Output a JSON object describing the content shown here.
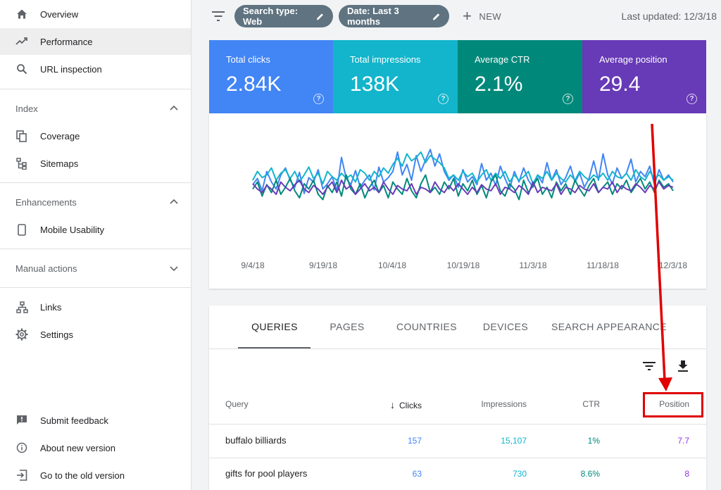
{
  "sidebar": {
    "top_items": [
      {
        "label": "Overview",
        "icon": "home-icon"
      },
      {
        "label": "Performance",
        "icon": "trending-up-icon"
      },
      {
        "label": "URL inspection",
        "icon": "search-icon"
      }
    ],
    "sections": [
      {
        "title": "Index",
        "items": [
          {
            "label": "Coverage",
            "icon": "coverage-icon"
          },
          {
            "label": "Sitemaps",
            "icon": "sitemap-icon"
          }
        ]
      },
      {
        "title": "Enhancements",
        "items": [
          {
            "label": "Mobile Usability",
            "icon": "phone-icon"
          }
        ]
      },
      {
        "title": "Manual actions",
        "items": []
      }
    ],
    "misc_items": [
      {
        "label": "Links",
        "icon": "links-icon"
      },
      {
        "label": "Settings",
        "icon": "gear-icon"
      }
    ],
    "bottom_items": [
      {
        "label": "Submit feedback",
        "icon": "feedback-icon"
      },
      {
        "label": "About new version",
        "icon": "info-icon"
      },
      {
        "label": "Go to the old version",
        "icon": "exit-icon"
      }
    ]
  },
  "topbar": {
    "chips": [
      {
        "label": "Search type: Web"
      },
      {
        "label": "Date: Last 3 months"
      }
    ],
    "new_label": "NEW",
    "last_updated": "Last updated: 12/3/18"
  },
  "metrics": [
    {
      "label": "Total clicks",
      "value": "2.84K",
      "color": "#4285f4"
    },
    {
      "label": "Total impressions",
      "value": "138K",
      "color": "#12b5cb"
    },
    {
      "label": "Average CTR",
      "value": "2.1%",
      "color": "#00897b"
    },
    {
      "label": "Average position",
      "value": "29.4",
      "color": "#673ab7"
    }
  ],
  "chart_data": {
    "type": "line",
    "x_tick_labels": [
      "9/4/18",
      "9/19/18",
      "10/4/18",
      "10/19/18",
      "11/3/18",
      "11/18/18",
      "12/3/18"
    ],
    "grid": false,
    "legend": "none",
    "series": [
      {
        "color": "#4285f4",
        "values": [
          0.55,
          0.62,
          0.48,
          0.7,
          0.58,
          0.5,
          0.66,
          0.74,
          0.6,
          0.52,
          0.69,
          0.45,
          0.63,
          0.58,
          0.72,
          0.5,
          0.56,
          0.64,
          0.48,
          0.86,
          0.62,
          0.55,
          0.71,
          0.52,
          0.6,
          0.66,
          0.49,
          0.75,
          0.58,
          0.63,
          0.7,
          0.92,
          0.66,
          0.78,
          0.6,
          0.88,
          0.7,
          0.83,
          0.95,
          0.76,
          0.9,
          0.7,
          0.6,
          0.66,
          0.52,
          0.72,
          0.58,
          0.64,
          0.55,
          0.79,
          0.6,
          0.68,
          0.54,
          0.76,
          0.62,
          0.5,
          0.7,
          0.58,
          0.74,
          0.6,
          0.52,
          0.66,
          0.57,
          0.8,
          0.6,
          0.72,
          0.55,
          0.63,
          0.76,
          0.58,
          0.68,
          0.52,
          0.62,
          0.82,
          0.6,
          0.9,
          0.66,
          0.56,
          0.74,
          0.62,
          0.68,
          0.84,
          0.58,
          0.7,
          0.64,
          0.76,
          0.55,
          0.72,
          0.6,
          0.66,
          0.58
        ]
      },
      {
        "color": "#12b5cb",
        "values": [
          0.6,
          0.7,
          0.63,
          0.66,
          0.74,
          0.6,
          0.68,
          0.72,
          0.62,
          0.7,
          0.58,
          0.66,
          0.75,
          0.62,
          0.68,
          0.56,
          0.7,
          0.64,
          0.6,
          0.68,
          0.62,
          0.66,
          0.58,
          0.72,
          0.68,
          0.6,
          0.7,
          0.64,
          0.74,
          0.68,
          0.78,
          0.85,
          0.76,
          0.9,
          0.82,
          0.86,
          0.92,
          0.8,
          0.88,
          0.84,
          0.8,
          0.74,
          0.62,
          0.66,
          0.6,
          0.7,
          0.64,
          0.68,
          0.58,
          0.66,
          0.72,
          0.6,
          0.68,
          0.62,
          0.7,
          0.58,
          0.66,
          0.6,
          0.64,
          0.7,
          0.56,
          0.66,
          0.62,
          0.7,
          0.6,
          0.68,
          0.62,
          0.58,
          0.66,
          0.6,
          0.7,
          0.64,
          0.6,
          0.66,
          0.62,
          0.68,
          0.6,
          0.7,
          0.64,
          0.62,
          0.68,
          0.6,
          0.72,
          0.64,
          0.6,
          0.7,
          0.62,
          0.66,
          0.6,
          0.64,
          0.6
        ]
      },
      {
        "color": "#00897b",
        "values": [
          0.5,
          0.58,
          0.42,
          0.55,
          0.46,
          0.6,
          0.44,
          0.52,
          0.62,
          0.48,
          0.4,
          0.56,
          0.5,
          0.6,
          0.44,
          0.38,
          0.54,
          0.46,
          0.58,
          0.42,
          0.66,
          0.5,
          0.44,
          0.56,
          0.4,
          0.52,
          0.6,
          0.46,
          0.54,
          0.4,
          0.58,
          0.5,
          0.44,
          0.62,
          0.48,
          0.4,
          0.56,
          0.66,
          0.46,
          0.52,
          0.44,
          0.58,
          0.5,
          0.62,
          0.42,
          0.56,
          0.48,
          0.6,
          0.44,
          0.54,
          0.4,
          0.58,
          0.66,
          0.48,
          0.42,
          0.56,
          0.5,
          0.38,
          0.6,
          0.46,
          0.54,
          0.62,
          0.44,
          0.52,
          0.4,
          0.58,
          0.48,
          0.56,
          0.44,
          0.6,
          0.5,
          0.42,
          0.54,
          0.62,
          0.46,
          0.52,
          0.58,
          0.44,
          0.56,
          0.5,
          0.6,
          0.46,
          0.54,
          0.62,
          0.5,
          0.58,
          0.46,
          0.6,
          0.52,
          0.56,
          0.48
        ]
      },
      {
        "color": "#673ab7",
        "values": [
          0.56,
          0.5,
          0.46,
          0.54,
          0.5,
          0.44,
          0.58,
          0.52,
          0.48,
          0.55,
          0.6,
          0.5,
          0.46,
          0.54,
          0.5,
          0.44,
          0.52,
          0.58,
          0.46,
          0.6,
          0.5,
          0.54,
          0.44,
          0.5,
          0.56,
          0.48,
          0.52,
          0.46,
          0.58,
          0.5,
          0.44,
          0.54,
          0.5,
          0.48,
          0.56,
          0.44,
          0.52,
          0.5,
          0.46,
          0.58,
          0.5,
          0.46,
          0.54,
          0.48,
          0.56,
          0.5,
          0.44,
          0.52,
          0.46,
          0.55,
          0.5,
          0.48,
          0.56,
          0.44,
          0.52,
          0.5,
          0.46,
          0.54,
          0.5,
          0.44,
          0.58,
          0.46,
          0.52,
          0.5,
          0.48,
          0.56,
          0.44,
          0.52,
          0.5,
          0.46,
          0.54,
          0.5,
          0.48,
          0.56,
          0.46,
          0.52,
          0.5,
          0.58,
          0.46,
          0.54,
          0.5,
          0.48,
          0.56,
          0.52,
          0.46,
          0.54,
          0.5,
          0.58,
          0.5,
          0.54,
          0.52
        ]
      }
    ]
  },
  "table": {
    "tabs": [
      "QUERIES",
      "PAGES",
      "COUNTRIES",
      "DEVICES",
      "SEARCH APPEARANCE"
    ],
    "columns": {
      "query": "Query",
      "clicks": "Clicks",
      "impressions": "Impressions",
      "ctr": "CTR",
      "position": "Position"
    },
    "rows": [
      {
        "query": "buffalo billiards",
        "clicks": "157",
        "impressions": "15,107",
        "ctr": "1%",
        "position": "7.7"
      },
      {
        "query": "gifts for pool players",
        "clicks": "63",
        "impressions": "730",
        "ctr": "8.6%",
        "position": "8"
      }
    ]
  },
  "annotation": {
    "color": "#e00000"
  }
}
